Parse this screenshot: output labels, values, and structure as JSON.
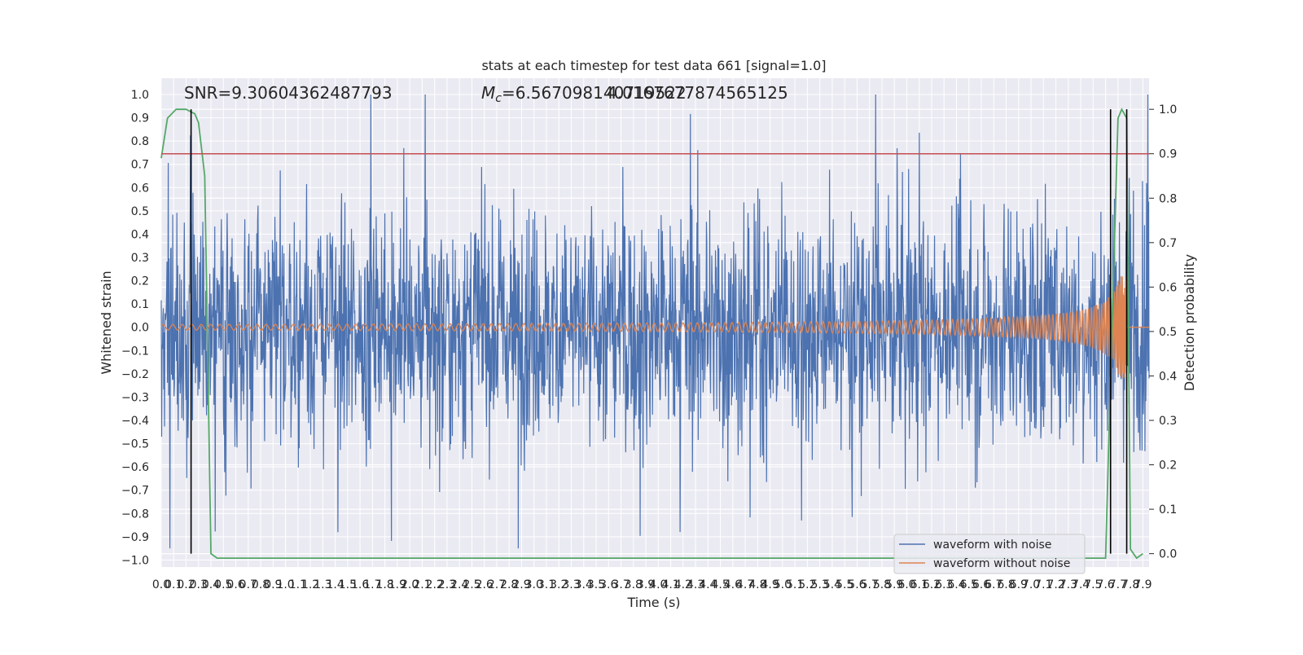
{
  "chart_data": {
    "type": "line",
    "title": "stats at each timestep for test data 661 [signal=1.0]",
    "xlabel": "Time (s)",
    "ylabel": "Whitened strain",
    "y2label": "Detection probability",
    "xlim": [
      0.0,
      7.95
    ],
    "ylim": [
      -1.03,
      1.07
    ],
    "y2lim": [
      -0.03,
      1.07
    ],
    "x_ticks": [
      "0.0",
      "0.1",
      "0.2",
      "0.3",
      "0.4",
      "0.5",
      "0.6",
      "0.7",
      "0.8",
      "0.9",
      "1.0",
      "1.1",
      "1.2",
      "1.3",
      "1.4",
      "1.5",
      "1.6",
      "1.7",
      "1.8",
      "1.9",
      "2.0",
      "2.1",
      "2.2",
      "2.3",
      "2.4",
      "2.5",
      "2.6",
      "2.7",
      "2.8",
      "2.9",
      "3.0",
      "3.1",
      "3.2",
      "3.3",
      "3.4",
      "3.5",
      "3.6",
      "3.7",
      "3.8",
      "3.9",
      "4.0",
      "4.1",
      "4.2",
      "4.3",
      "4.4",
      "4.5",
      "4.6",
      "4.7",
      "4.8",
      "4.9",
      "5.0",
      "5.1",
      "5.2",
      "5.3",
      "5.4",
      "5.5",
      "5.6",
      "5.7",
      "5.8",
      "5.9",
      "6.0",
      "6.1",
      "6.2",
      "6.3",
      "6.4",
      "6.5",
      "6.6",
      "6.7",
      "6.8",
      "6.9",
      "7.0",
      "7.1",
      "7.2",
      "7.3",
      "7.4",
      "7.5",
      "7.6",
      "7.7",
      "7.8",
      "7.9"
    ],
    "y_ticks": [
      "1.0",
      "0.9",
      "0.8",
      "0.7",
      "0.6",
      "0.5",
      "0.4",
      "0.3",
      "0.2",
      "0.1",
      "0.0",
      "−0.1",
      "−0.2",
      "−0.3",
      "−0.4",
      "−0.5",
      "−0.6",
      "−0.7",
      "−0.8",
      "−0.9",
      "−1.0"
    ],
    "y_tick_values": [
      1.0,
      0.9,
      0.8,
      0.7,
      0.6,
      0.5,
      0.4,
      0.3,
      0.2,
      0.1,
      0.0,
      -0.1,
      -0.2,
      -0.3,
      -0.4,
      -0.5,
      -0.6,
      -0.7,
      -0.8,
      -0.9,
      -1.0
    ],
    "y2_ticks": [
      "1.0",
      "0.9",
      "0.8",
      "0.7",
      "0.6",
      "0.5",
      "0.4",
      "0.3",
      "0.2",
      "0.1",
      "0.0"
    ],
    "y2_tick_values": [
      1.0,
      0.9,
      0.8,
      0.7,
      0.6,
      0.5,
      0.4,
      0.3,
      0.2,
      0.1,
      0.0
    ],
    "annotations": {
      "snr": "SNR=9.30604362487793",
      "mc": "M",
      "mc_sub": "c",
      "mc_value": "=6.567098140719522",
      "overlap": "4.0167677874565125"
    },
    "threshold": {
      "axis": "y2",
      "value": 0.9,
      "color": "#c44e52"
    },
    "vertical_lines": [
      0.24,
      7.64,
      7.77
    ],
    "series": [
      {
        "name": "waveform with noise",
        "color": "#4c72b0",
        "axis": "y",
        "kind": "noise",
        "envelope_sigma": 0.25
      },
      {
        "name": "waveform without noise",
        "color": "#dd8452",
        "axis": "y",
        "kind": "chirp",
        "t_start": 0.0,
        "t_merge": 7.77,
        "amp_start": 0.012,
        "amp_peak": 0.22,
        "freq_start": 13,
        "freq_end": 120
      },
      {
        "name": "",
        "color": "#55a868",
        "axis": "y2",
        "kind": "probability",
        "x": [
          0.0,
          0.05,
          0.12,
          0.2,
          0.27,
          0.3,
          0.35,
          0.4,
          0.45,
          7.5,
          7.6,
          7.65,
          7.7,
          7.73,
          7.77,
          7.8,
          7.85,
          7.9
        ],
        "y": [
          0.89,
          0.98,
          1.0,
          1.0,
          0.99,
          0.97,
          0.85,
          0.0,
          -0.01,
          -0.01,
          -0.01,
          0.5,
          0.98,
          1.0,
          0.98,
          0.01,
          -0.01,
          0.0
        ]
      }
    ],
    "legend": {
      "placement": "lower-right",
      "entries": [
        "waveform with noise",
        "waveform without noise"
      ]
    },
    "grid": true,
    "colors": {
      "axes_bg": "#eaeaf2",
      "grid": "#ffffff"
    }
  }
}
